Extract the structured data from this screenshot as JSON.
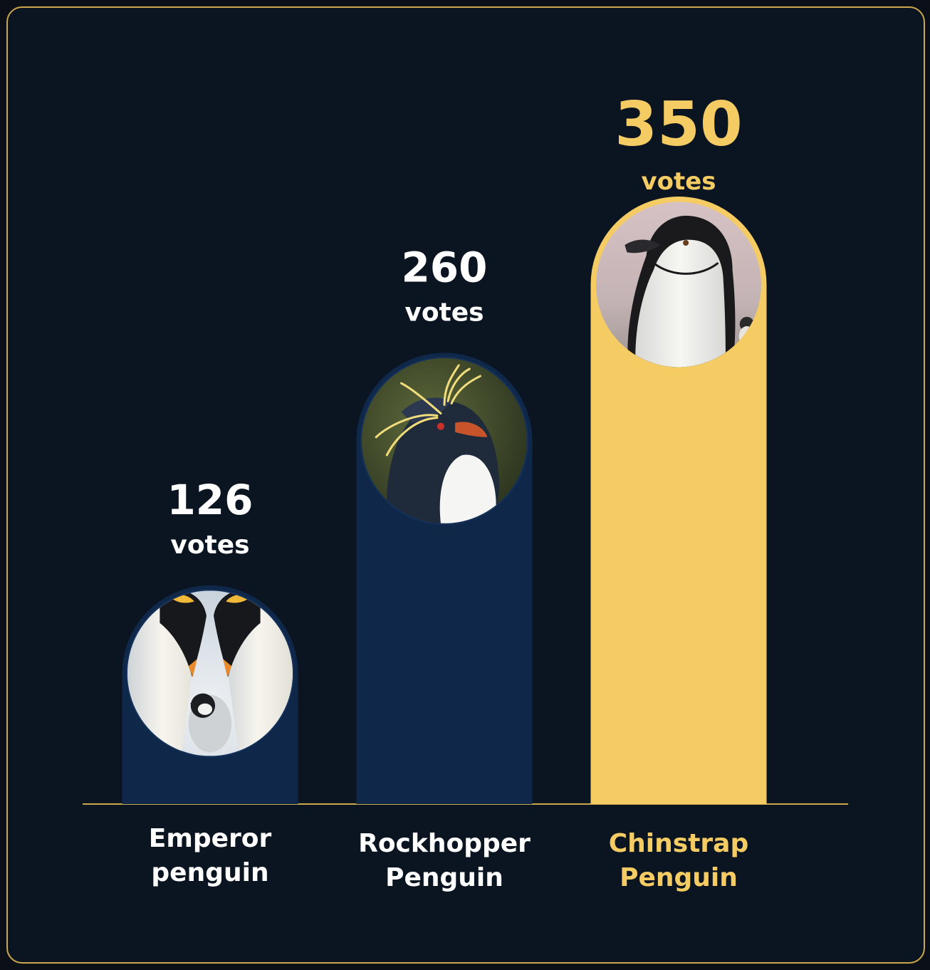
{
  "colors": {
    "background": "#0b1421",
    "border": "#c9a84c",
    "bar": "#0f284a",
    "highlight": "#f5cc63",
    "text": "#ffffff",
    "baseline": "#c9a84c"
  },
  "chart_data": {
    "type": "bar",
    "categories": [
      "Emperor penguin",
      "Rockhopper Penguin",
      "Chinstrap Penguin"
    ],
    "values": [
      126,
      260,
      350
    ],
    "value_unit": "votes",
    "highlight_index": 2,
    "images": [
      "emperor-penguin-photo",
      "rockhopper-penguin-photo",
      "chinstrap-penguin-photo"
    ],
    "grid": false,
    "legend": "none"
  },
  "labels": [
    {
      "value": "126",
      "unit": "votes",
      "name_line1": "Emperor",
      "name_line2": "penguin"
    },
    {
      "value": "260",
      "unit": "votes",
      "name_line1": "Rockhopper",
      "name_line2": "Penguin"
    },
    {
      "value": "350",
      "unit": "votes",
      "name_line1": "Chinstrap",
      "name_line2": "Penguin"
    }
  ]
}
